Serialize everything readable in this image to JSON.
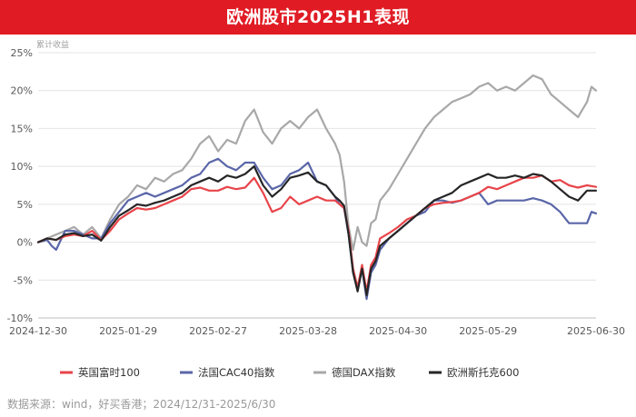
{
  "title": "欧洲股市2025H1表现",
  "footer": "数据来源：wind，好买香港；2024/12/31-2025/6/30",
  "chart_data": {
    "type": "line",
    "ylabel": "累计收益",
    "ylim": [
      -10,
      25
    ],
    "yticks": [
      -10,
      -5,
      0,
      5,
      10,
      15,
      20,
      25
    ],
    "ytick_labels": [
      "-10%",
      "-5%",
      "0%",
      "5%",
      "10%",
      "15%",
      "20%",
      "25%"
    ],
    "xticks": [
      0,
      20,
      40,
      60,
      80,
      100,
      124
    ],
    "xtick_labels": [
      "2024-12-30",
      "2025-01-29",
      "2025-02-27",
      "2025-03-28",
      "2025-04-30",
      "2025-05-29",
      "2025-06-30"
    ],
    "x_range": [
      0,
      124
    ],
    "grid": "horizontal",
    "legend_position": "bottom",
    "series": [
      {
        "name": "英国富时100",
        "color": "#e8444a",
        "points": [
          [
            0,
            0
          ],
          [
            2,
            0.5
          ],
          [
            4,
            0.3
          ],
          [
            6,
            0.8
          ],
          [
            8,
            1.0
          ],
          [
            10,
            0.8
          ],
          [
            12,
            1.5
          ],
          [
            14,
            0.3
          ],
          [
            16,
            1.5
          ],
          [
            18,
            3.0
          ],
          [
            20,
            3.8
          ],
          [
            22,
            4.5
          ],
          [
            24,
            4.3
          ],
          [
            26,
            4.5
          ],
          [
            28,
            5.0
          ],
          [
            30,
            5.5
          ],
          [
            32,
            6.0
          ],
          [
            34,
            7.0
          ],
          [
            36,
            7.2
          ],
          [
            38,
            6.8
          ],
          [
            40,
            6.8
          ],
          [
            42,
            7.3
          ],
          [
            44,
            7.0
          ],
          [
            46,
            7.2
          ],
          [
            48,
            8.5
          ],
          [
            50,
            6.5
          ],
          [
            52,
            4.0
          ],
          [
            54,
            4.5
          ],
          [
            56,
            6.0
          ],
          [
            58,
            5.0
          ],
          [
            60,
            5.5
          ],
          [
            62,
            6.0
          ],
          [
            64,
            5.5
          ],
          [
            66,
            5.5
          ],
          [
            67,
            5.0
          ],
          [
            68,
            4.5
          ],
          [
            69,
            1.5
          ],
          [
            70,
            -3.5
          ],
          [
            71,
            -6.0
          ],
          [
            72,
            -3.0
          ],
          [
            73,
            -6.5
          ],
          [
            74,
            -3.0
          ],
          [
            75,
            -2.0
          ],
          [
            76,
            0.5
          ],
          [
            78,
            1.2
          ],
          [
            80,
            2.0
          ],
          [
            82,
            3.0
          ],
          [
            84,
            3.5
          ],
          [
            86,
            4.5
          ],
          [
            88,
            5.0
          ],
          [
            90,
            5.2
          ],
          [
            92,
            5.3
          ],
          [
            94,
            5.5
          ],
          [
            96,
            6.0
          ],
          [
            98,
            6.5
          ],
          [
            100,
            7.3
          ],
          [
            102,
            7.0
          ],
          [
            104,
            7.5
          ],
          [
            106,
            8.0
          ],
          [
            108,
            8.5
          ],
          [
            110,
            8.5
          ],
          [
            112,
            8.8
          ],
          [
            114,
            8.0
          ],
          [
            116,
            8.2
          ],
          [
            118,
            7.5
          ],
          [
            120,
            7.2
          ],
          [
            122,
            7.5
          ],
          [
            124,
            7.3
          ]
        ]
      },
      {
        "name": "法国CAC40指数",
        "color": "#5a66a8",
        "points": [
          [
            0,
            0
          ],
          [
            2,
            0.3
          ],
          [
            3,
            -0.5
          ],
          [
            4,
            -1.0
          ],
          [
            6,
            1.5
          ],
          [
            8,
            1.5
          ],
          [
            10,
            1.0
          ],
          [
            12,
            0.5
          ],
          [
            14,
            0.5
          ],
          [
            16,
            2.5
          ],
          [
            18,
            4.0
          ],
          [
            20,
            5.5
          ],
          [
            22,
            6.0
          ],
          [
            24,
            6.5
          ],
          [
            26,
            6.0
          ],
          [
            28,
            6.5
          ],
          [
            30,
            7.0
          ],
          [
            32,
            7.5
          ],
          [
            34,
            8.5
          ],
          [
            36,
            9.0
          ],
          [
            38,
            10.5
          ],
          [
            40,
            11.0
          ],
          [
            42,
            10.0
          ],
          [
            44,
            9.5
          ],
          [
            46,
            10.5
          ],
          [
            48,
            10.5
          ],
          [
            50,
            8.5
          ],
          [
            52,
            7.0
          ],
          [
            54,
            7.5
          ],
          [
            56,
            9.0
          ],
          [
            58,
            9.5
          ],
          [
            60,
            10.5
          ],
          [
            62,
            8.0
          ],
          [
            64,
            7.5
          ],
          [
            66,
            6.0
          ],
          [
            67,
            5.0
          ],
          [
            68,
            4.5
          ],
          [
            69,
            1.0
          ],
          [
            70,
            -4.0
          ],
          [
            71,
            -6.0
          ],
          [
            72,
            -3.5
          ],
          [
            73,
            -7.5
          ],
          [
            74,
            -4.0
          ],
          [
            75,
            -3.0
          ],
          [
            76,
            -1.0
          ],
          [
            78,
            0.5
          ],
          [
            80,
            1.5
          ],
          [
            82,
            2.5
          ],
          [
            84,
            3.5
          ],
          [
            86,
            4.0
          ],
          [
            88,
            5.5
          ],
          [
            90,
            5.5
          ],
          [
            92,
            5.2
          ],
          [
            94,
            5.5
          ],
          [
            96,
            6.0
          ],
          [
            98,
            6.5
          ],
          [
            100,
            5.0
          ],
          [
            102,
            5.5
          ],
          [
            104,
            5.5
          ],
          [
            106,
            5.5
          ],
          [
            108,
            5.5
          ],
          [
            110,
            5.8
          ],
          [
            112,
            5.5
          ],
          [
            114,
            5.0
          ],
          [
            116,
            4.0
          ],
          [
            118,
            2.5
          ],
          [
            120,
            2.5
          ],
          [
            121,
            2.5
          ],
          [
            122,
            2.5
          ],
          [
            123,
            4.0
          ],
          [
            124,
            3.8
          ]
        ]
      },
      {
        "name": "德国DAX指数",
        "color": "#a8a8a8",
        "points": [
          [
            0,
            0
          ],
          [
            2,
            0.5
          ],
          [
            4,
            1.0
          ],
          [
            6,
            1.5
          ],
          [
            8,
            2.0
          ],
          [
            10,
            1.0
          ],
          [
            12,
            2.0
          ],
          [
            14,
            0.5
          ],
          [
            16,
            3.0
          ],
          [
            18,
            5.0
          ],
          [
            20,
            6.0
          ],
          [
            22,
            7.5
          ],
          [
            24,
            7.0
          ],
          [
            26,
            8.5
          ],
          [
            28,
            8.0
          ],
          [
            30,
            9.0
          ],
          [
            32,
            9.5
          ],
          [
            34,
            11.0
          ],
          [
            36,
            13.0
          ],
          [
            38,
            14.0
          ],
          [
            40,
            12.0
          ],
          [
            42,
            13.5
          ],
          [
            44,
            13.0
          ],
          [
            46,
            16.0
          ],
          [
            48,
            17.5
          ],
          [
            50,
            14.5
          ],
          [
            52,
            13.0
          ],
          [
            54,
            15.0
          ],
          [
            56,
            16.0
          ],
          [
            58,
            15.0
          ],
          [
            60,
            16.5
          ],
          [
            62,
            17.5
          ],
          [
            64,
            15.0
          ],
          [
            66,
            13.0
          ],
          [
            67,
            11.5
          ],
          [
            68,
            8.0
          ],
          [
            69,
            2.0
          ],
          [
            70,
            -1.0
          ],
          [
            71,
            2.0
          ],
          [
            72,
            0.0
          ],
          [
            73,
            -0.5
          ],
          [
            74,
            2.5
          ],
          [
            75,
            3.0
          ],
          [
            76,
            5.5
          ],
          [
            78,
            7.0
          ],
          [
            80,
            9.0
          ],
          [
            82,
            11.0
          ],
          [
            84,
            13.0
          ],
          [
            86,
            15.0
          ],
          [
            88,
            16.5
          ],
          [
            90,
            17.5
          ],
          [
            92,
            18.5
          ],
          [
            94,
            19.0
          ],
          [
            96,
            19.5
          ],
          [
            98,
            20.5
          ],
          [
            100,
            21.0
          ],
          [
            102,
            20.0
          ],
          [
            104,
            20.5
          ],
          [
            106,
            20.0
          ],
          [
            108,
            21.0
          ],
          [
            110,
            22.0
          ],
          [
            112,
            21.5
          ],
          [
            114,
            19.5
          ],
          [
            116,
            18.5
          ],
          [
            118,
            17.5
          ],
          [
            120,
            16.5
          ],
          [
            121,
            17.5
          ],
          [
            122,
            18.5
          ],
          [
            123,
            20.5
          ],
          [
            124,
            20.0
          ]
        ]
      },
      {
        "name": "欧洲斯托克600",
        "color": "#262626",
        "points": [
          [
            0,
            0
          ],
          [
            2,
            0.5
          ],
          [
            4,
            0.3
          ],
          [
            6,
            1.0
          ],
          [
            8,
            1.2
          ],
          [
            10,
            0.8
          ],
          [
            12,
            1.0
          ],
          [
            14,
            0.2
          ],
          [
            16,
            2.0
          ],
          [
            18,
            3.5
          ],
          [
            20,
            4.2
          ],
          [
            22,
            5.0
          ],
          [
            24,
            4.8
          ],
          [
            26,
            5.2
          ],
          [
            28,
            5.5
          ],
          [
            30,
            6.0
          ],
          [
            32,
            6.5
          ],
          [
            34,
            7.5
          ],
          [
            36,
            8.0
          ],
          [
            38,
            8.5
          ],
          [
            40,
            8.0
          ],
          [
            42,
            8.8
          ],
          [
            44,
            8.5
          ],
          [
            46,
            9.0
          ],
          [
            48,
            10.0
          ],
          [
            50,
            7.5
          ],
          [
            52,
            6.0
          ],
          [
            54,
            7.0
          ],
          [
            56,
            8.5
          ],
          [
            58,
            8.8
          ],
          [
            60,
            9.2
          ],
          [
            62,
            8.0
          ],
          [
            64,
            7.5
          ],
          [
            66,
            6.0
          ],
          [
            67,
            5.5
          ],
          [
            68,
            4.8
          ],
          [
            69,
            1.0
          ],
          [
            70,
            -4.0
          ],
          [
            71,
            -6.5
          ],
          [
            72,
            -3.5
          ],
          [
            73,
            -7.0
          ],
          [
            74,
            -3.5
          ],
          [
            75,
            -2.5
          ],
          [
            76,
            -0.5
          ],
          [
            78,
            0.5
          ],
          [
            80,
            1.5
          ],
          [
            82,
            2.5
          ],
          [
            84,
            3.5
          ],
          [
            86,
            4.5
          ],
          [
            88,
            5.5
          ],
          [
            90,
            6.0
          ],
          [
            92,
            6.5
          ],
          [
            94,
            7.5
          ],
          [
            96,
            8.0
          ],
          [
            98,
            8.5
          ],
          [
            100,
            9.0
          ],
          [
            102,
            8.5
          ],
          [
            104,
            8.5
          ],
          [
            106,
            8.8
          ],
          [
            108,
            8.5
          ],
          [
            110,
            9.0
          ],
          [
            112,
            8.8
          ],
          [
            114,
            8.0
          ],
          [
            116,
            7.0
          ],
          [
            118,
            6.0
          ],
          [
            120,
            5.5
          ],
          [
            122,
            6.8
          ],
          [
            124,
            6.8
          ]
        ]
      }
    ]
  }
}
